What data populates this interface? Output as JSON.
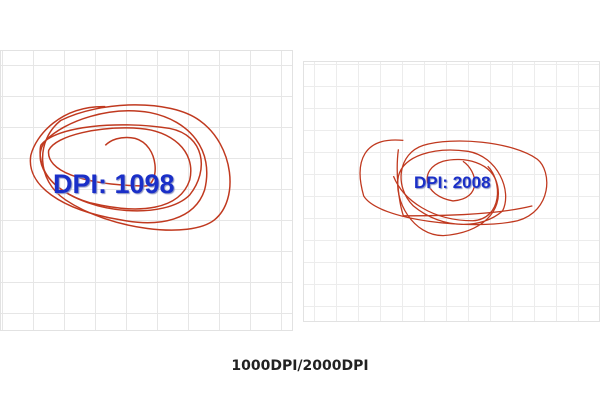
{
  "panels": [
    {
      "label": "DPI: 1098"
    },
    {
      "label": "DPI: 2008"
    }
  ],
  "caption": "1000DPI/2000DPI",
  "colors": {
    "scribble": "#c0391f",
    "label": "#1a2fc8"
  }
}
